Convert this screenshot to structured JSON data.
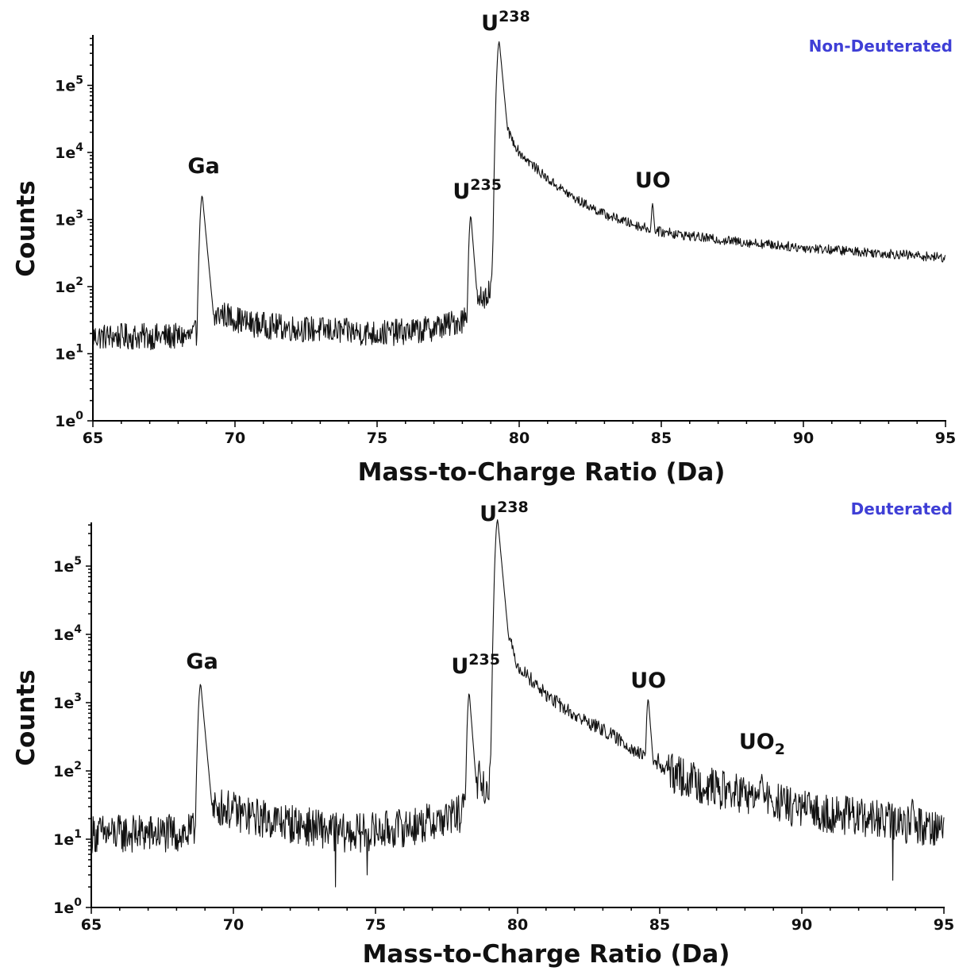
{
  "chart_data": [
    {
      "type": "line",
      "panel_label": "Non-Deuterated",
      "xlabel": "Mass-to-Charge Ratio (Da)",
      "ylabel": "Counts",
      "xlim": [
        65,
        95
      ],
      "xticks": [
        "65",
        "70",
        "75",
        "80",
        "85",
        "90",
        "95"
      ],
      "ylim": [
        1,
        500000
      ],
      "yscale": "log",
      "yticks": [
        {
          "base": "1e",
          "exp": "0"
        },
        {
          "base": "1e",
          "exp": "1"
        },
        {
          "base": "1e",
          "exp": "2"
        },
        {
          "base": "1e",
          "exp": "3"
        },
        {
          "base": "1e",
          "exp": "4"
        },
        {
          "base": "1e",
          "exp": "5"
        }
      ],
      "annotations": [
        {
          "base": "Ga",
          "sup": "",
          "sub": "",
          "x": 68.9
        },
        {
          "base": "U",
          "sup": "235",
          "sub": "",
          "x": 78.3
        },
        {
          "base": "U",
          "sup": "238",
          "sub": "",
          "x": 79.3
        },
        {
          "base": "UO",
          "sup": "",
          "sub": "",
          "x": 84.7
        }
      ],
      "series": [
        {
          "baseline": [
            [
              65,
              18
            ],
            [
              68.5,
              18
            ],
            [
              68.7,
              22
            ],
            [
              69.5,
              40
            ],
            [
              70.5,
              28
            ],
            [
              72,
              24
            ],
            [
              75,
              20
            ],
            [
              76.5,
              22
            ],
            [
              77.5,
              27
            ],
            [
              78.0,
              32
            ],
            [
              78.5,
              60
            ],
            [
              79.0,
              90
            ],
            [
              79.4,
              30000
            ],
            [
              80,
              10000
            ],
            [
              81,
              4000
            ],
            [
              82,
              2000
            ],
            [
              83,
              1200
            ],
            [
              84,
              850
            ],
            [
              85,
              650
            ],
            [
              87,
              500
            ],
            [
              90,
              380
            ],
            [
              93,
              310
            ],
            [
              95,
              270
            ]
          ],
          "peaks": [
            {
              "x": 68.85,
              "y": 2300,
              "width": 0.06
            },
            {
              "x": 78.3,
              "y": 1150,
              "width": 0.05
            },
            {
              "x": 78.65,
              "y": 75,
              "width": 0.04
            },
            {
              "x": 79.3,
              "y": 450000,
              "width": 0.06
            },
            {
              "x": 84.7,
              "y": 1750,
              "width": 0.05
            },
            {
              "x": 85.3,
              "y": 760,
              "width": 0.04
            }
          ],
          "noise": 0.09
        }
      ]
    },
    {
      "type": "line",
      "panel_label": "Deuterated",
      "xlabel": "Mass-to-Charge Ratio (Da)",
      "ylabel": "Counts",
      "xlim": [
        65,
        95
      ],
      "xticks": [
        "65",
        "70",
        "75",
        "80",
        "85",
        "90",
        "95"
      ],
      "ylim": [
        1,
        500000
      ],
      "yscale": "log",
      "yticks": [
        {
          "base": "1e",
          "exp": "0"
        },
        {
          "base": "1e",
          "exp": "1"
        },
        {
          "base": "1e",
          "exp": "2"
        },
        {
          "base": "1e",
          "exp": "3"
        },
        {
          "base": "1e",
          "exp": "4"
        },
        {
          "base": "1e",
          "exp": "5"
        }
      ],
      "annotations": [
        {
          "base": "Ga",
          "sup": "",
          "sub": "",
          "x": 68.9
        },
        {
          "base": "U",
          "sup": "235",
          "sub": "",
          "x": 78.3
        },
        {
          "base": "U",
          "sup": "238",
          "sub": "",
          "x": 79.3
        },
        {
          "base": "UO",
          "sup": "",
          "sub": "",
          "x": 84.6
        },
        {
          "base": "UO",
          "sup": "",
          "sub": "2",
          "x": 88.6
        }
      ],
      "series": [
        {
          "baseline": [
            [
              65,
              12
            ],
            [
              68.5,
              12
            ],
            [
              68.8,
              16
            ],
            [
              69.5,
              30
            ],
            [
              70.5,
              22
            ],
            [
              72,
              17
            ],
            [
              74,
              12
            ],
            [
              75,
              13
            ],
            [
              76.5,
              16
            ],
            [
              77.5,
              20
            ],
            [
              78.1,
              25
            ],
            [
              78.5,
              45
            ],
            [
              79.0,
              60
            ],
            [
              79.3,
              30000
            ],
            [
              80,
              3500
            ],
            [
              81,
              1300
            ],
            [
              82,
              650
            ],
            [
              83,
              400
            ],
            [
              84,
              220
            ],
            [
              84.5,
              150
            ],
            [
              85,
              110
            ],
            [
              86,
              75
            ],
            [
              87,
              55
            ],
            [
              88,
              44
            ],
            [
              89,
              35
            ],
            [
              90,
              27
            ],
            [
              92,
              21
            ],
            [
              94,
              16
            ],
            [
              95,
              15
            ]
          ],
          "peaks": [
            {
              "x": 68.85,
              "y": 1900,
              "width": 0.06
            },
            {
              "x": 78.3,
              "y": 1400,
              "width": 0.05
            },
            {
              "x": 78.65,
              "y": 140,
              "width": 0.04
            },
            {
              "x": 79.3,
              "y": 480000,
              "width": 0.06
            },
            {
              "x": 84.6,
              "y": 1150,
              "width": 0.05
            },
            {
              "x": 84.95,
              "y": 180,
              "width": 0.04
            },
            {
              "x": 85.25,
              "y": 140,
              "width": 0.04
            },
            {
              "x": 88.6,
              "y": 90,
              "width": 0.05
            },
            {
              "x": 93.9,
              "y": 40,
              "width": 0.05
            }
          ],
          "dips": [
            {
              "x": 73.6,
              "y": 2
            },
            {
              "x": 74.7,
              "y": 3
            },
            {
              "x": 93.2,
              "y": 2.5
            }
          ],
          "noise": 0.13
        }
      ]
    }
  ],
  "colors": {
    "series": "#111111",
    "axis": "#000000",
    "panel_label": "#3f3fd6"
  }
}
